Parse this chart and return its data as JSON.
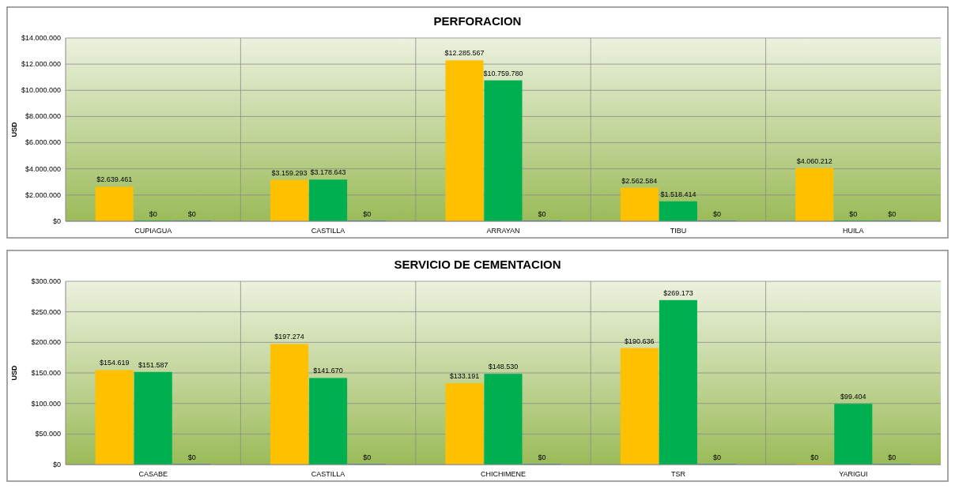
{
  "chart_data": [
    {
      "type": "bar",
      "title": "PERFORACION",
      "ylabel": "USD",
      "categories": [
        "CUPIAGUA",
        "CASTILLA",
        "ARRAYAN",
        "TIBU",
        "HUILA"
      ],
      "series": [
        {
          "color": "#ffc000",
          "values": [
            2639461,
            3159293,
            12285567,
            2562584,
            4060212
          ],
          "value_labels": [
            "$2.639.461",
            "$3.159.293",
            "$12.285.567",
            "$2.562.584",
            "$4.060.212"
          ]
        },
        {
          "color": "#00b050",
          "values": [
            0,
            3178643,
            10759780,
            1518414,
            0
          ],
          "value_labels": [
            "$0",
            "$3.178.643",
            "$10.759.780",
            "$1.518.414",
            "$0"
          ]
        },
        {
          "color": "#4472c4",
          "values": [
            0,
            0,
            0,
            0,
            0
          ],
          "value_labels": [
            "$0",
            "$0",
            "$0",
            "$0",
            "$0"
          ]
        }
      ],
      "ylim": [
        0,
        14000000
      ],
      "yticks": [
        {
          "value": 0,
          "label": "$0"
        },
        {
          "value": 2000000,
          "label": "$2.000.000"
        },
        {
          "value": 4000000,
          "label": "$4.000.000"
        },
        {
          "value": 6000000,
          "label": "$6.000.000"
        },
        {
          "value": 8000000,
          "label": "$8.000.000"
        },
        {
          "value": 10000000,
          "label": "$10.000.000"
        },
        {
          "value": 12000000,
          "label": "$12.000.000"
        },
        {
          "value": 14000000,
          "label": "$14.000.000"
        }
      ],
      "grid": true
    },
    {
      "type": "bar",
      "title": "SERVICIO DE CEMENTACION",
      "ylabel": "USD",
      "categories": [
        "CASABE",
        "CASTILLA",
        "CHICHIMENE",
        "TSR",
        "YARIGUI"
      ],
      "series": [
        {
          "color": "#ffc000",
          "values": [
            154619,
            197274,
            133191,
            190636,
            0
          ],
          "value_labels": [
            "$154.619",
            "$197.274",
            "$133.191",
            "$190.636",
            "$0"
          ]
        },
        {
          "color": "#00b050",
          "values": [
            151587,
            141670,
            148530,
            269173,
            99404
          ],
          "value_labels": [
            "$151.587",
            "$141.670",
            "$148.530",
            "$269.173",
            "$99.404"
          ]
        },
        {
          "color": "#4472c4",
          "values": [
            0,
            0,
            0,
            0,
            0
          ],
          "value_labels": [
            "$0",
            "$0",
            "$0",
            "$0",
            "$0"
          ]
        }
      ],
      "ylim": [
        0,
        300000
      ],
      "yticks": [
        {
          "value": 0,
          "label": "$0"
        },
        {
          "value": 50000,
          "label": "$50.000"
        },
        {
          "value": 100000,
          "label": "$100.000"
        },
        {
          "value": 150000,
          "label": "$150.000"
        },
        {
          "value": 200000,
          "label": "$200.000"
        },
        {
          "value": 250000,
          "label": "$250.000"
        },
        {
          "value": 300000,
          "label": "$300.000"
        }
      ],
      "grid": true
    }
  ]
}
